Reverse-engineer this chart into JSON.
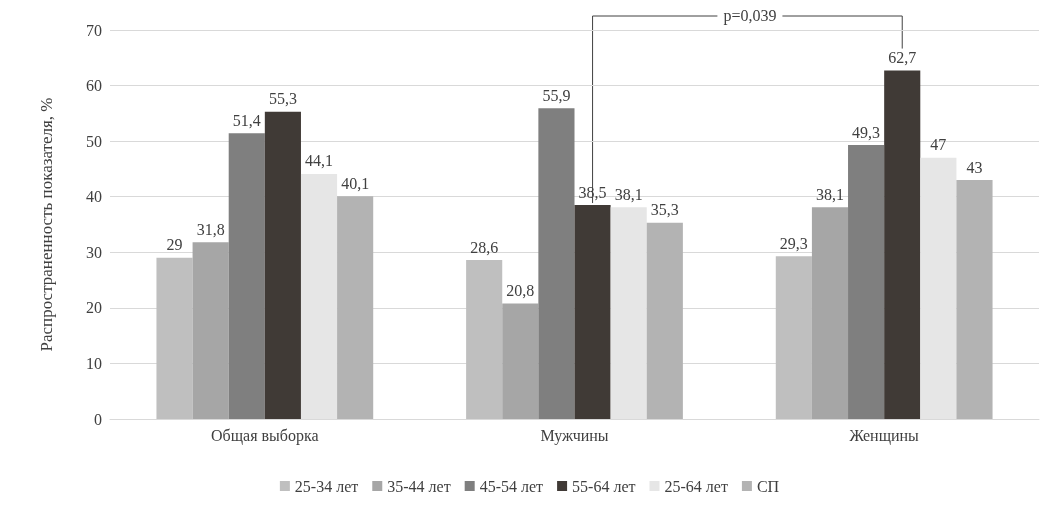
{
  "chart_data": {
    "type": "bar",
    "ylabel": "Распространенность показателя, %",
    "categories": [
      "Общая выборка",
      "Мужчины",
      "Женщины"
    ],
    "series": [
      {
        "name": "25-34 лет",
        "color": "#bfbfbf",
        "values": [
          29,
          28.6,
          29.3
        ],
        "value_labels": [
          "29",
          "28,6",
          "29,3"
        ]
      },
      {
        "name": "35-44 лет",
        "color": "#a6a6a6",
        "values": [
          31.8,
          20.8,
          38.1
        ],
        "value_labels": [
          "31,8",
          "20,8",
          "38,1"
        ]
      },
      {
        "name": "45-54 лет",
        "color": "#7f7f7f",
        "values": [
          51.4,
          55.9,
          49.3
        ],
        "value_labels": [
          "51,4",
          "55,9",
          "49,3"
        ]
      },
      {
        "name": "55-64 лет",
        "color": "#403a36",
        "values": [
          55.3,
          38.5,
          62.7
        ],
        "value_labels": [
          "55,3",
          "38,5",
          "62,7"
        ]
      },
      {
        "name": "25-64 лет",
        "color": "#e6e6e6",
        "values": [
          44.1,
          38.1,
          47
        ],
        "value_labels": [
          "44,1",
          "38,1",
          "47"
        ]
      },
      {
        "name": "СП",
        "color": "#b3b3b3",
        "values": [
          40.1,
          35.3,
          43
        ],
        "value_labels": [
          "40,1",
          "35,3",
          "43"
        ]
      }
    ],
    "ylim": [
      0,
      70
    ],
    "yticks": [
      0,
      10,
      20,
      30,
      40,
      50,
      60,
      70
    ],
    "grid": "y",
    "legend": "bottom",
    "annotations": [
      "p=0,039"
    ]
  }
}
